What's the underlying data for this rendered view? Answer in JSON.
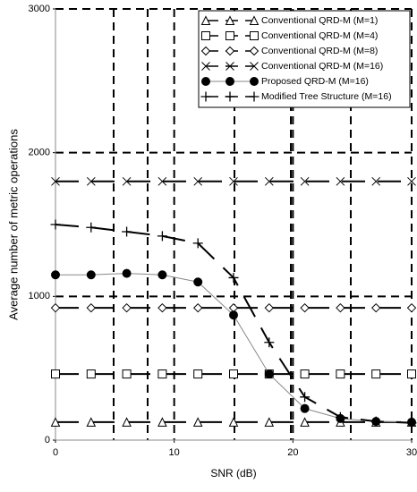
{
  "chart_data": {
    "type": "line",
    "x_label": "SNR (dB)",
    "y_label": "Average number of metric operations",
    "xlim": [
      0,
      30
    ],
    "xticks": [
      0,
      10,
      20,
      30
    ],
    "ylim": [
      0,
      3000
    ],
    "yticks": [
      0,
      1000,
      2000,
      3000
    ],
    "grid": true,
    "legend": "upper right",
    "x": [
      0,
      3,
      6,
      9,
      12,
      15,
      18,
      21,
      24,
      27,
      30
    ],
    "series": [
      {
        "name": "Conventional QRD-M (M=1)",
        "color": "#000000",
        "marker": "triangle",
        "dash": true,
        "values": [
          125,
          125,
          125,
          125,
          125,
          125,
          125,
          125,
          125,
          125,
          125
        ]
      },
      {
        "name": "Conventional QRD-M (M=4)",
        "color": "#000000",
        "marker": "square",
        "dash": true,
        "values": [
          460,
          460,
          460,
          460,
          460,
          460,
          460,
          460,
          460,
          460,
          460
        ]
      },
      {
        "name": "Conventional QRD-M (M=8)",
        "color": "#000000",
        "marker": "diamond",
        "dash": true,
        "values": [
          920,
          920,
          920,
          920,
          920,
          920,
          920,
          920,
          920,
          920,
          920
        ]
      },
      {
        "name": "Conventional QRD-M (M=16)",
        "color": "#000000",
        "marker": "x",
        "dash": true,
        "values": [
          1800,
          1800,
          1800,
          1800,
          1800,
          1800,
          1800,
          1800,
          1800,
          1800,
          1800
        ]
      },
      {
        "name": "Proposed QRD-M (M=16)",
        "color": "#888888",
        "marker": "circle",
        "dash": false,
        "values": [
          1150,
          1150,
          1160,
          1150,
          1100,
          870,
          460,
          220,
          150,
          130,
          125
        ]
      },
      {
        "name": "Modified Tree Structure (M=16)",
        "color": "#000000",
        "marker": "plus",
        "dash": true,
        "values": [
          1500,
          1480,
          1450,
          1420,
          1370,
          1130,
          680,
          300,
          160,
          130,
          120
        ]
      }
    ]
  }
}
